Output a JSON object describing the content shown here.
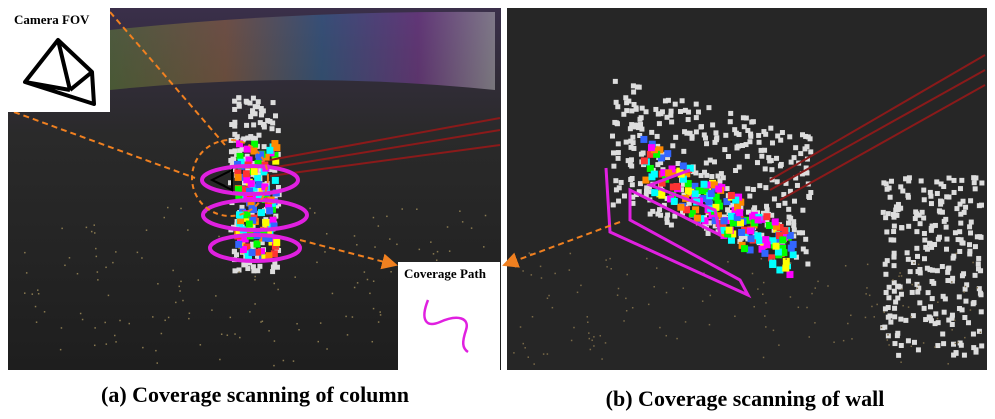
{
  "figure": {
    "insets": {
      "camera_fov": "Camera FOV",
      "coverage_path": "Coverage Path"
    },
    "captions": [
      "(a) Coverage scanning of column",
      "(b) Coverage scanning of wall"
    ]
  }
}
